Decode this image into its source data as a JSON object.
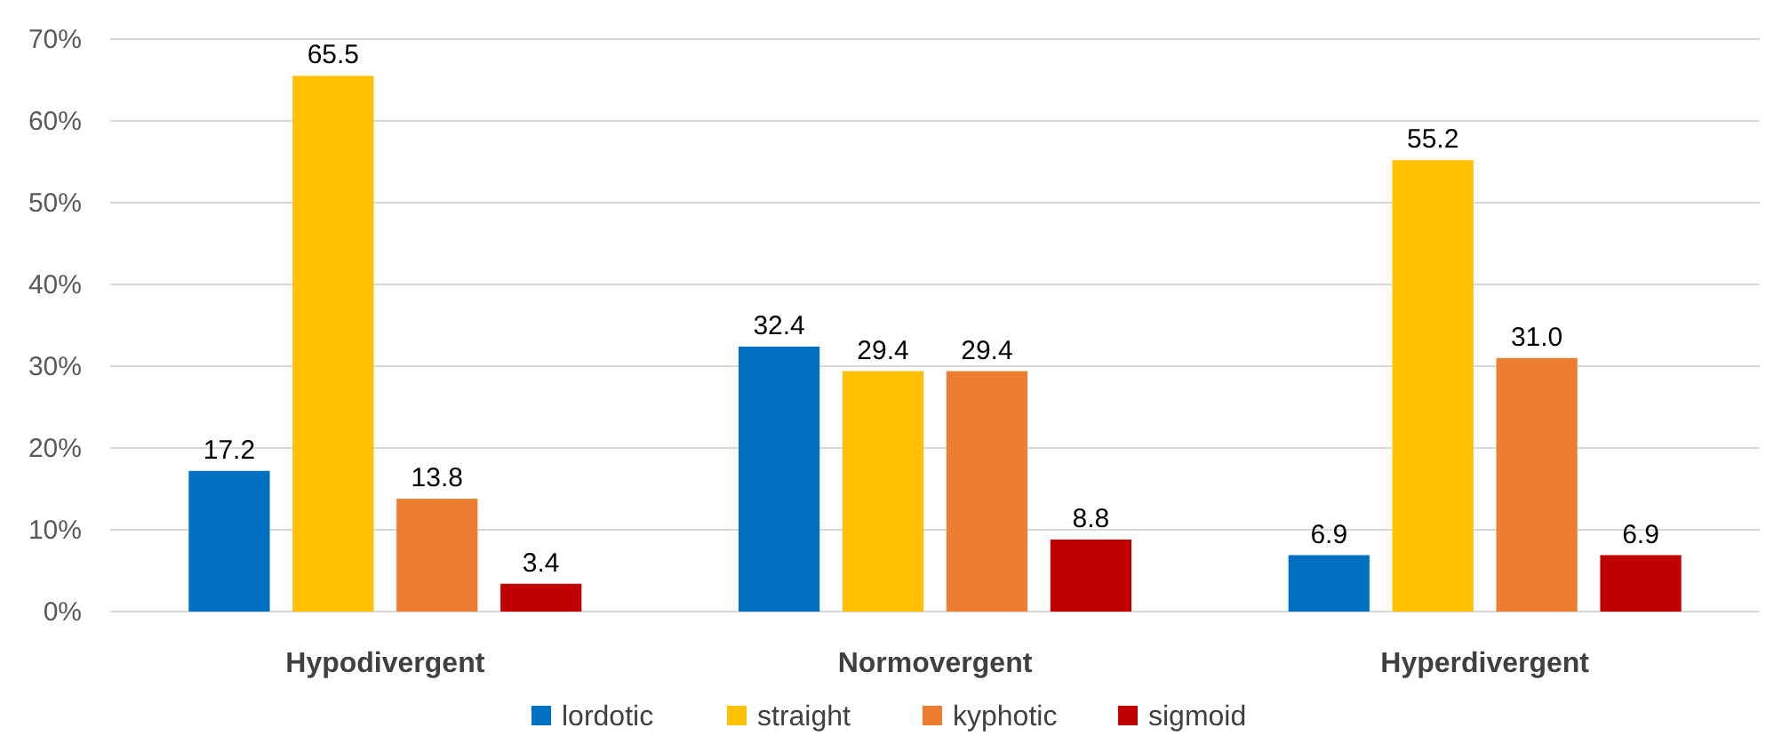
{
  "chart_data": {
    "type": "bar",
    "categories": [
      "Hypodivergent",
      "Normovergent",
      "Hyperdivergent"
    ],
    "series": [
      {
        "name": "lordotic",
        "color": "#0070c0",
        "values": [
          17.2,
          32.4,
          6.9
        ],
        "value_labels": [
          "17.2",
          "32.4",
          "6.9"
        ]
      },
      {
        "name": "straight",
        "color": "#ffc000",
        "values": [
          65.5,
          29.4,
          55.2
        ],
        "value_labels": [
          "65.5",
          "29.4",
          "55.2"
        ]
      },
      {
        "name": "kyphotic",
        "color": "#ed7d31",
        "values": [
          13.8,
          29.4,
          31.0
        ],
        "value_labels": [
          "13.8",
          "29.4",
          "31.0"
        ]
      },
      {
        "name": "sigmoid",
        "color": "#c00000",
        "values": [
          3.4,
          8.8,
          6.9
        ],
        "value_labels": [
          "3.4",
          "8.8",
          "6.9"
        ]
      }
    ],
    "ylim": [
      0,
      70
    ],
    "yticks": [
      {
        "value": 0,
        "label": "0%"
      },
      {
        "value": 10,
        "label": "10%"
      },
      {
        "value": 20,
        "label": "20%"
      },
      {
        "value": 30,
        "label": "30%"
      },
      {
        "value": 40,
        "label": "40%"
      },
      {
        "value": 50,
        "label": "50%"
      },
      {
        "value": 60,
        "label": "60%"
      },
      {
        "value": 70,
        "label": "70%"
      }
    ],
    "grid": "y",
    "legend": "bottom"
  }
}
